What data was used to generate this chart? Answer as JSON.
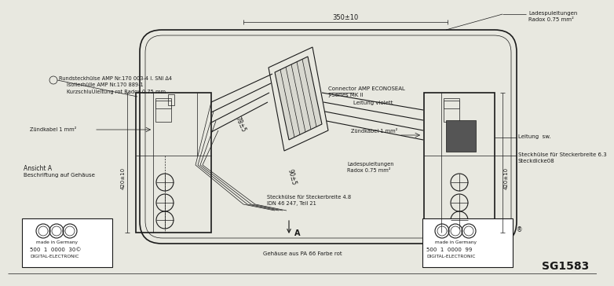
{
  "bg_color": "#e8e8e0",
  "line_color": "#1a1a1a",
  "title_code": "SG1583",
  "dim_350": "350±10",
  "dim_420_left": "420±10",
  "dim_420_right": "420±10",
  "dim_78": "78±5",
  "dim_90": "90±5",
  "label_rundsteckhuelse": "Rundsteckhülse AMP Nr.170 003-4 l. SNI Δ4",
  "label_isolierhuelse": "Isolierhülle AMP Nr.170 889-1",
  "label_kurzschluss": "KurzschluÛleitung rot Radox 0.75 mm",
  "label_zuendkabel_left": "Zündkabel 1 mm²",
  "label_zuendkabel_right": "Zündkabel 1 mm²",
  "label_connector": "Connector AMP ECONOSEAL",
  "label_jseries": "J-Series MK II",
  "label_leitung_violett": "Leitung violett",
  "label_leitung_sw": "Leitung  sw.",
  "label_ladespule_top": "Ladespuleitungen",
  "label_radox_top": "Radox 0.75 mm²",
  "label_ladespule_mid": "Ladespuleitungen",
  "label_radox_mid": "Radox 0.75 mm²",
  "label_steckhuelse_48": "Steckhülse für Steckerbreite 4.8",
  "label_idn": "IDN 46 247, Teil 21",
  "label_steckhuelse_63": "Steckhülse für Steckerbreite 6.3",
  "label_steckdicke": "Steckdicke08",
  "label_gehaeuse": "Gehäuse aus PA 66 Farbe rot",
  "label_ansicht": "Ansicht A",
  "label_beschriftung": "Beschriftung auf Gehäuse",
  "label_made": "made in Germany",
  "label_serial_left": "500  1  0000  30©",
  "label_serial_right": "500  1  0000  99",
  "label_digital": "DIGITAL-ELECTRONIC",
  "label_A": "A"
}
